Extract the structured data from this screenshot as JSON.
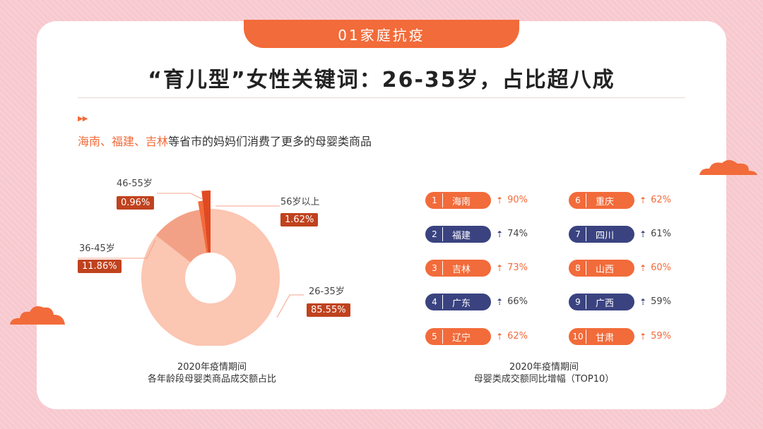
{
  "header": {
    "section_tab": "01家庭抗疫",
    "title": "“育儿型”女性关键词：26-35岁，占比超八成",
    "subtitle_highlight": "海南、福建、吉林",
    "subtitle_rest": "等省市的妈妈们消费了更多的母婴类商品",
    "arrow_glyph": "▶▶"
  },
  "colors": {
    "accent": "#f26b3a",
    "navy": "#3a4380",
    "badge": "#c0421e",
    "background": "#f7c9cf"
  },
  "chart_data": [
    {
      "type": "pie",
      "variant": "donut",
      "categories": [
        "26-35岁",
        "36-45岁",
        "46-55岁",
        "56岁以上"
      ],
      "values": [
        85.55,
        11.86,
        0.96,
        1.62
      ],
      "value_labels": [
        "85.55%",
        "11.86%",
        "0.96%",
        "1.62%"
      ],
      "colors": [
        "#fbc6b2",
        "#f3a186",
        "#f26b3a",
        "#e04a23"
      ],
      "caption": [
        "2020年疫情期间",
        "各年龄段母婴类商品成交额占比"
      ]
    },
    {
      "type": "table",
      "items": [
        {
          "rank": "1",
          "province": "海南",
          "growth": "90%",
          "color": "orange"
        },
        {
          "rank": "2",
          "province": "福建",
          "growth": "74%",
          "color": "navy"
        },
        {
          "rank": "3",
          "province": "吉林",
          "growth": "73%",
          "color": "orange"
        },
        {
          "rank": "4",
          "province": "广东",
          "growth": "66%",
          "color": "navy"
        },
        {
          "rank": "5",
          "province": "辽宁",
          "growth": "62%",
          "color": "orange"
        },
        {
          "rank": "6",
          "province": "重庆",
          "growth": "62%",
          "color": "orange"
        },
        {
          "rank": "7",
          "province": "四川",
          "growth": "61%",
          "color": "navy"
        },
        {
          "rank": "8",
          "province": "山西",
          "growth": "60%",
          "color": "orange"
        },
        {
          "rank": "9",
          "province": "广西",
          "growth": "59%",
          "color": "navy"
        },
        {
          "rank": "10",
          "province": "甘肃",
          "growth": "59%",
          "color": "orange"
        }
      ],
      "caption": [
        "2020年疫情期间",
        "母婴类成交额同比增幅（TOP10）"
      ]
    }
  ]
}
